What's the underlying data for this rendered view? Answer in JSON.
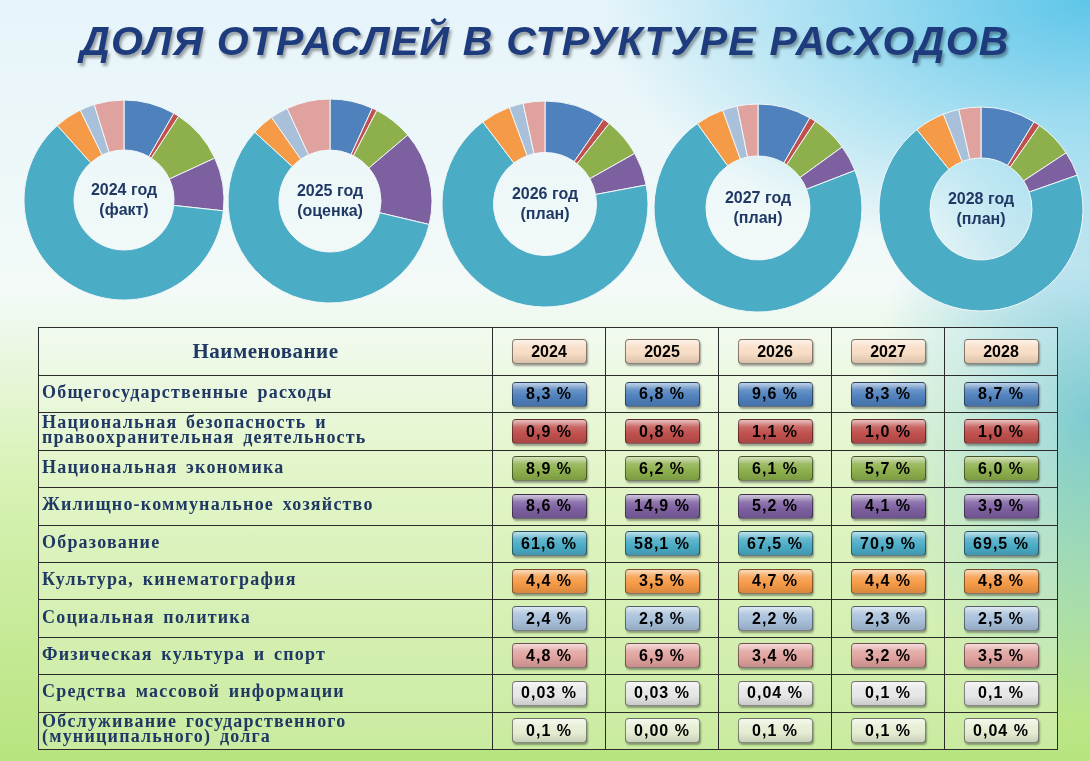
{
  "chart_data": [
    {
      "type": "other",
      "title": "ДОЛЯ ОТРАСЛЕЙ В СТРУКТУРЕ РАСХОДОВ"
    },
    {
      "type": "donut",
      "title": "2024 год (факт)",
      "categories": [
        null,
        null,
        null,
        null,
        null,
        null,
        null,
        null,
        null,
        null
      ],
      "values": [
        8.3,
        0.9,
        8.9,
        8.6,
        61.6,
        4.4,
        2.4,
        4.8,
        null,
        null
      ],
      "colors": [
        "#4f81bd",
        "#c0504d",
        "#8db04d",
        "#7d60a0",
        "#4bacc6",
        "#f59a46",
        "#a8c0da",
        "#e0a29e",
        "#e6e6e6",
        "#e4edd2"
      ]
    },
    {
      "type": "donut",
      "title": "2025 год (оценка)",
      "categories": [
        null,
        null,
        null,
        null,
        null,
        null,
        null,
        null,
        null,
        null
      ],
      "values": [
        6.8,
        0.8,
        6.2,
        14.9,
        58.1,
        3.5,
        2.8,
        6.9,
        null,
        null
      ],
      "colors": [
        "#4f81bd",
        "#c0504d",
        "#8db04d",
        "#7d60a0",
        "#4bacc6",
        "#f59a46",
        "#a8c0da",
        "#e0a29e",
        "#e6e6e6",
        "#e4edd2"
      ]
    },
    {
      "type": "donut",
      "title": "2026 год (план)",
      "categories": [
        null,
        null,
        null,
        null,
        null,
        null,
        null,
        null,
        null,
        null
      ],
      "values": [
        9.6,
        1.1,
        6.1,
        5.2,
        67.5,
        4.7,
        2.2,
        3.4,
        null,
        null
      ],
      "colors": [
        "#4f81bd",
        "#c0504d",
        "#8db04d",
        "#7d60a0",
        "#4bacc6",
        "#f59a46",
        "#a8c0da",
        "#e0a29e",
        "#e6e6e6",
        "#e4edd2"
      ]
    },
    {
      "type": "donut",
      "title": "2027 год (план)",
      "categories": [
        null,
        null,
        null,
        null,
        null,
        null,
        null,
        null,
        null,
        null
      ],
      "values": [
        8.3,
        1.0,
        5.7,
        4.1,
        70.9,
        4.4,
        2.3,
        3.2,
        null,
        null
      ],
      "colors": [
        "#4f81bd",
        "#c0504d",
        "#8db04d",
        "#7d60a0",
        "#4bacc6",
        "#f59a46",
        "#a8c0da",
        "#e0a29e",
        "#e6e6e6",
        "#e4edd2"
      ]
    },
    {
      "type": "donut",
      "title": "2028 год (план)",
      "categories": [
        null,
        null,
        null,
        null,
        null,
        null,
        null,
        null,
        null,
        null
      ],
      "values": [
        8.7,
        1.0,
        6.0,
        3.9,
        69.5,
        4.8,
        2.5,
        3.5,
        null,
        null
      ],
      "colors": [
        "#4f81bd",
        "#c0504d",
        "#8db04d",
        "#7d60a0",
        "#4bacc6",
        "#f59a46",
        "#a8c0da",
        "#e0a29e",
        "#e6e6e6",
        "#e4edd2"
      ]
    },
    {
      "type": "heatmap",
      "ylabel": "Наименование",
      "categories": [
        "2024",
        "2025",
        "2026",
        "2027",
        "2028"
      ],
      "y_categories": [
        "Общегосударственные расходы",
        "Национальная безопасность и правоохранительная деятельность",
        "Национальная экономика",
        "Жилищно-коммунальное хозяйство",
        "Образование",
        "Культура, кинематография",
        "Социальная политика",
        "Физическая культура и спорт",
        "Средства массовой информации",
        "Обслуживание государственного (муниципального) долга"
      ],
      "cells": [
        [
          8.3,
          6.8,
          9.6,
          8.3,
          8.7
        ],
        [
          0.9,
          0.8,
          1.1,
          1.0,
          1.0
        ],
        [
          8.9,
          6.2,
          6.1,
          5.7,
          6.0
        ],
        [
          8.6,
          14.9,
          5.2,
          4.1,
          3.9
        ],
        [
          61.6,
          58.1,
          67.5,
          70.9,
          69.5
        ],
        [
          4.4,
          3.5,
          4.7,
          4.4,
          4.8
        ],
        [
          2.4,
          2.8,
          2.2,
          2.3,
          2.5
        ],
        [
          4.8,
          6.9,
          3.4,
          3.2,
          3.5
        ],
        [
          0.03,
          0.03,
          0.04,
          0.1,
          0.1
        ],
        [
          0.1,
          0,
          0.1,
          0.1,
          0.04
        ]
      ],
      "cell_labels": [
        [
          "8,3 %",
          "6,8 %",
          "9,6 %",
          "8,3 %",
          "8,7 %"
        ],
        [
          "0,9 %",
          "0,8 %",
          "1,1 %",
          "1,0 %",
          "1,0 %"
        ],
        [
          "8,9 %",
          "6,2 %",
          "6,1 %",
          "5,7 %",
          "6,0 %"
        ],
        [
          "8,6 %",
          "14,9 %",
          "5,2 %",
          "4,1 %",
          "3,9 %"
        ],
        [
          "61,6 %",
          "58,1 %",
          "67,5 %",
          "70,9 %",
          "69,5 %"
        ],
        [
          "4,4 %",
          "3,5 %",
          "4,7 %",
          "4,4 %",
          "4,8 %"
        ],
        [
          "2,4 %",
          "2,8 %",
          "2,2 %",
          "2,3 %",
          "2,5 %"
        ],
        [
          "4,8 %",
          "6,9 %",
          "3,4 %",
          "3,2 %",
          "3,5 %"
        ],
        [
          "0,03 %",
          "0,03 %",
          "0,04 %",
          "0,1 %",
          "0,1 %"
        ],
        [
          "0,1 %",
          "0,00 %",
          "0,1 %",
          "0,1 %",
          "0,04 %"
        ]
      ]
    }
  ]
}
